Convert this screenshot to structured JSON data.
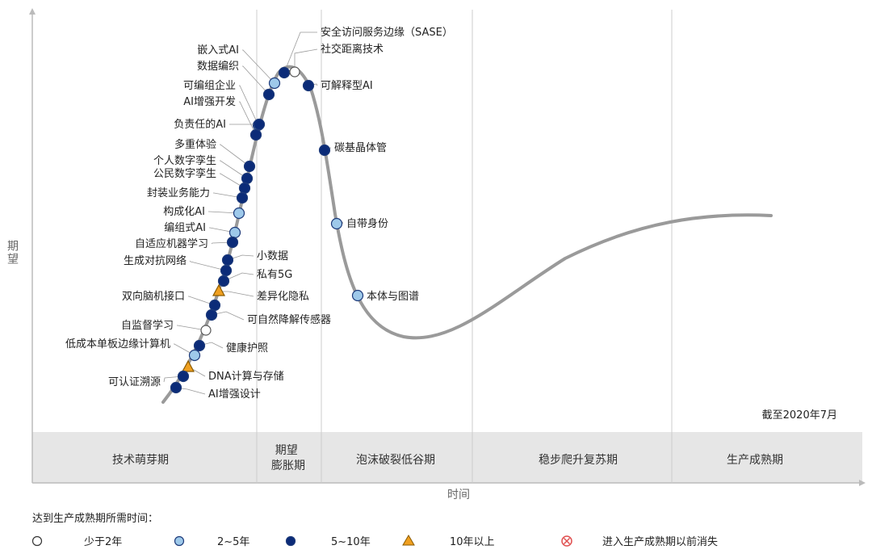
{
  "axes": {
    "y_label": "期望",
    "x_label": "时间"
  },
  "as_of": "截至2020年7月",
  "phases": [
    {
      "name": "技术萌芽期"
    },
    {
      "name": "期望\n膨胀期"
    },
    {
      "name": "泡沫破裂低谷期"
    },
    {
      "name": "稳步爬升复苏期"
    },
    {
      "name": "生产成熟期"
    }
  ],
  "legend": {
    "title": "达到生产成熟期所需时间：",
    "items": [
      {
        "kind": "lt2",
        "label": "少于2年"
      },
      {
        "kind": "2to5",
        "label": "2~5年"
      },
      {
        "kind": "5to10",
        "label": "5~10年"
      },
      {
        "kind": "gt10",
        "label": "10年以上"
      },
      {
        "kind": "obsolete",
        "label": "进入生产成熟期以前消失"
      }
    ]
  },
  "marker_colors": {
    "lt2": "#ffffff",
    "2to5": "#9ec9ea",
    "5to10": "#0b2b78",
    "gt10": "#f0a020",
    "obsolete": "#e05050"
  },
  "technologies": [
    {
      "name": "安全访问服务边缘（SASE）",
      "kind": "5to10"
    },
    {
      "name": "社交距离技术",
      "kind": "lt2"
    },
    {
      "name": "嵌入式AI",
      "kind": "2to5"
    },
    {
      "name": "数据编织",
      "kind": "5to10"
    },
    {
      "name": "可解释型AI",
      "kind": "5to10"
    },
    {
      "name": "可编组企业",
      "kind": "2to5"
    },
    {
      "name": "AI增强开发",
      "kind": "5to10"
    },
    {
      "name": "负责任的AI",
      "kind": "5to10"
    },
    {
      "name": "碳基晶体管",
      "kind": "5to10"
    },
    {
      "name": "多重体验",
      "kind": "5to10"
    },
    {
      "name": "个人数字孪生",
      "kind": "5to10"
    },
    {
      "name": "公民数字孪生",
      "kind": "5to10"
    },
    {
      "name": "封装业务能力",
      "kind": "5to10"
    },
    {
      "name": "构成化AI",
      "kind": "2to5"
    },
    {
      "name": "自带身份",
      "kind": "2to5"
    },
    {
      "name": "编组式AI",
      "kind": "2to5"
    },
    {
      "name": "自适应机器学习",
      "kind": "5to10"
    },
    {
      "name": "小数据",
      "kind": "5to10"
    },
    {
      "name": "生成对抗网络",
      "kind": "5to10"
    },
    {
      "name": "私有5G",
      "kind": "5to10"
    },
    {
      "name": "差异化隐私",
      "kind": "gt10"
    },
    {
      "name": "本体与图谱",
      "kind": "2to5"
    },
    {
      "name": "双向脑机接口",
      "kind": "5to10"
    },
    {
      "name": "可自然降解传感器",
      "kind": "5to10"
    },
    {
      "name": "自监督学习",
      "kind": "lt2"
    },
    {
      "name": "健康护照",
      "kind": "5to10"
    },
    {
      "name": "低成本单板边缘计算机",
      "kind": "2to5"
    },
    {
      "name": "DNA计算与存储",
      "kind": "gt10"
    },
    {
      "name": "可认证溯源",
      "kind": "5to10"
    },
    {
      "name": "AI增强设计",
      "kind": "5to10"
    }
  ]
}
